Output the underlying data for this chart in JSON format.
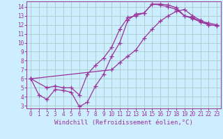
{
  "bg_color": "#cceeff",
  "grid_color": "#aacccc",
  "line_color": "#993399",
  "marker": "+",
  "markersize": 4,
  "linewidth": 0.9,
  "xlabel": "Windchill (Refroidissement éolien,°C)",
  "xlabel_fontsize": 6.5,
  "xlim": [
    -0.5,
    23.5
  ],
  "ylim": [
    2.7,
    14.6
  ],
  "xticks": [
    0,
    1,
    2,
    3,
    4,
    5,
    6,
    7,
    8,
    9,
    10,
    11,
    12,
    13,
    14,
    15,
    16,
    17,
    18,
    19,
    20,
    21,
    22,
    23
  ],
  "yticks": [
    3,
    4,
    5,
    6,
    7,
    8,
    9,
    10,
    11,
    12,
    13,
    14
  ],
  "tick_fontsize": 5.5,
  "curves": [
    {
      "x": [
        0,
        1,
        2,
        3,
        4,
        5,
        6,
        7,
        8,
        9,
        10,
        11,
        12,
        13,
        14,
        15,
        16,
        17,
        18,
        19,
        20,
        21,
        22,
        23
      ],
      "y": [
        6.0,
        4.2,
        3.7,
        4.8,
        4.7,
        4.5,
        2.9,
        3.4,
        5.2,
        6.5,
        8.5,
        10.0,
        12.5,
        13.2,
        13.3,
        14.3,
        14.3,
        14.2,
        13.9,
        13.0,
        12.8,
        12.4,
        12.2,
        12.0
      ]
    },
    {
      "x": [
        0,
        2,
        3,
        4,
        5,
        6,
        7,
        8,
        9,
        10,
        11,
        12,
        13,
        14,
        15,
        16,
        17,
        18,
        19,
        20,
        21,
        22,
        23
      ],
      "y": [
        6.0,
        5.0,
        5.2,
        5.0,
        5.0,
        4.2,
        6.5,
        7.5,
        8.3,
        9.5,
        11.5,
        12.8,
        13.0,
        13.3,
        14.3,
        14.2,
        14.0,
        13.7,
        13.0,
        12.7,
        12.3,
        12.0,
        11.9
      ]
    },
    {
      "x": [
        0,
        10,
        11,
        12,
        13,
        14,
        15,
        16,
        17,
        18,
        19,
        20,
        21,
        22,
        23
      ],
      "y": [
        6.0,
        7.0,
        7.8,
        8.5,
        9.2,
        10.5,
        11.5,
        12.4,
        13.0,
        13.5,
        13.7,
        13.0,
        12.5,
        12.0,
        11.9
      ]
    }
  ]
}
